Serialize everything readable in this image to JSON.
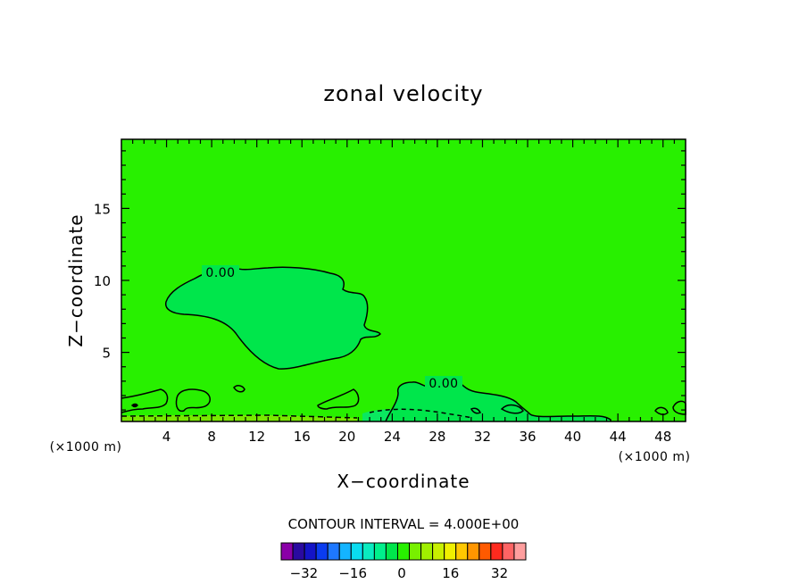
{
  "chart_data": {
    "type": "contour",
    "title": "zonal velocity",
    "xlabel": "X−coordinate",
    "ylabel": "Z−coordinate",
    "x_unit_left": "(×1000 m)",
    "x_unit_right": "(×1000 m)",
    "xlim": [
      0,
      50
    ],
    "ylim": [
      0.2,
      19.8
    ],
    "x_ticks": [
      4,
      8,
      12,
      16,
      20,
      24,
      28,
      32,
      36,
      40,
      44,
      48
    ],
    "x_tick_labels": [
      "4",
      "8",
      "12",
      "16",
      "20",
      "24",
      "28",
      "32",
      "36",
      "40",
      "44",
      "48"
    ],
    "y_ticks": [
      5,
      10,
      15
    ],
    "y_tick_labels": [
      "5",
      "10",
      "15"
    ],
    "contour_interval_text": "CONTOUR INTERVAL = 4.000E+00",
    "contour_labels": [
      "0.00",
      "0.00"
    ],
    "colorbar": {
      "colors": [
        "#8a00a8",
        "#2a0aa0",
        "#1414c8",
        "#0a3cf0",
        "#1e78ff",
        "#14b4ff",
        "#0adcf0",
        "#0aebc0",
        "#00f08c",
        "#00e64b",
        "#28f000",
        "#78f000",
        "#a0f000",
        "#c8f000",
        "#f0f000",
        "#ffc800",
        "#ff9600",
        "#ff5a00",
        "#ff2a1e",
        "#ff6464",
        "#ff9e9e"
      ],
      "tick_values": [
        -32,
        -16,
        0,
        16,
        32
      ],
      "tick_labels": [
        "−32",
        "−16",
        "0",
        "16",
        "32"
      ],
      "min": -40,
      "max": 40
    },
    "background_level_color": "#28f000"
  }
}
